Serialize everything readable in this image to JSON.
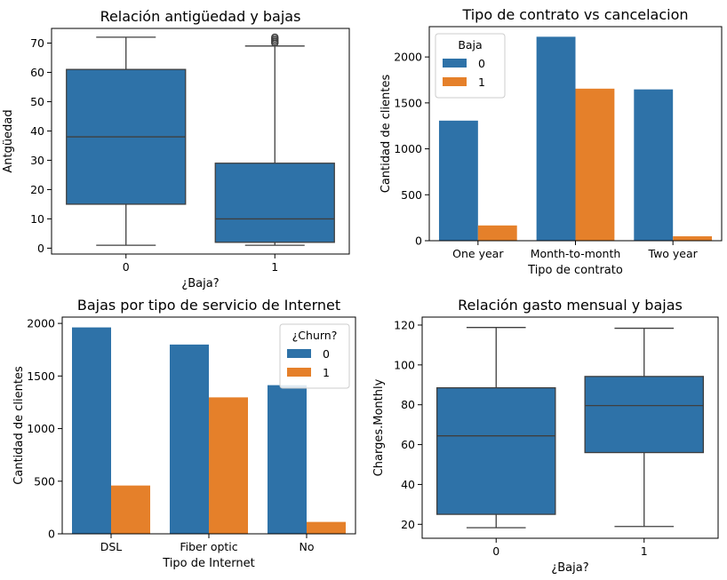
{
  "chart_data": [
    {
      "type": "boxplot",
      "title": "Relación antigüedad y bajas",
      "xlabel": "¿Baja?",
      "ylabel": "Antgüedad",
      "ylim": [
        -2,
        75
      ],
      "yticks": [
        0,
        10,
        20,
        30,
        40,
        50,
        60,
        70
      ],
      "categories": [
        "0",
        "1"
      ],
      "color": "#2e72a8",
      "boxes": [
        {
          "category": "0",
          "whislo": 1,
          "q1": 15,
          "med": 38,
          "q3": 61,
          "whishi": 72,
          "fliers": []
        },
        {
          "category": "1",
          "whislo": 1,
          "q1": 2,
          "med": 10,
          "q3": 29,
          "whishi": 69,
          "fliers": [
            70,
            70.5,
            71,
            71.5,
            72
          ]
        }
      ]
    },
    {
      "type": "bar",
      "title": "Tipo de contrato vs cancelacion",
      "xlabel": "Tipo de contrato",
      "ylabel": "Cantidad de clientes",
      "ylim": [
        0,
        2330
      ],
      "yticks": [
        0,
        500,
        1000,
        1500,
        2000
      ],
      "categories": [
        "One year",
        "Month-to-month",
        "Two year"
      ],
      "legend": {
        "title": "Baja",
        "position": "top-left"
      },
      "series": [
        {
          "name": "0",
          "color": "#2e72a8",
          "values": [
            1307,
            2220,
            1647
          ]
        },
        {
          "name": "1",
          "color": "#e5802a",
          "values": [
            166,
            1655,
            48
          ]
        }
      ]
    },
    {
      "type": "bar",
      "title": "Bajas por tipo de servicio de Internet",
      "xlabel": "Tipo de Internet",
      "ylabel": "Cantidad de clientes",
      "ylim": [
        0,
        2060
      ],
      "yticks": [
        0,
        500,
        1000,
        1500,
        2000
      ],
      "categories": [
        "DSL",
        "Fiber optic",
        "No"
      ],
      "legend": {
        "title": "¿Churn?",
        "position": "top-right"
      },
      "series": [
        {
          "name": "0",
          "color": "#2e72a8",
          "values": [
            1962,
            1799,
            1413
          ]
        },
        {
          "name": "1",
          "color": "#e5802a",
          "values": [
            459,
            1297,
            113
          ]
        }
      ]
    },
    {
      "type": "boxplot",
      "title": "Relación gasto mensual y bajas",
      "xlabel": "¿Baja?",
      "ylabel": "Charges.Monthly",
      "ylim": [
        13,
        124
      ],
      "yticks": [
        20,
        40,
        60,
        80,
        100,
        120
      ],
      "categories": [
        "0",
        "1"
      ],
      "color": "#2e72a8",
      "boxes": [
        {
          "category": "0",
          "whislo": 18.3,
          "q1": 25,
          "med": 64.4,
          "q3": 88.5,
          "whishi": 118.8,
          "fliers": []
        },
        {
          "category": "1",
          "whislo": 18.9,
          "q1": 56,
          "med": 79.6,
          "q3": 94.2,
          "whishi": 118.4,
          "fliers": []
        }
      ]
    }
  ]
}
